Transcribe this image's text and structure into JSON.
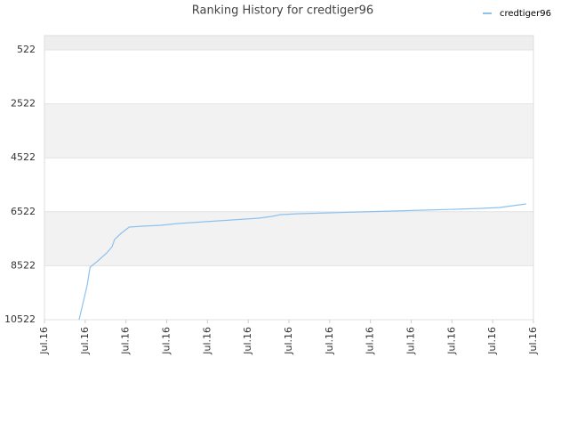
{
  "chart_data": {
    "type": "line",
    "title": "Ranking History for credtiger96",
    "series": [
      {
        "name": "credtiger96",
        "color": "#8ec2ee",
        "x": [
          0.85,
          1.05,
          1.12,
          1.31,
          1.53,
          1.66,
          1.72,
          1.88,
          2.08,
          2.41,
          2.85,
          3.28,
          3.94,
          4.6,
          5.26,
          5.58,
          5.8,
          6.24,
          7.01,
          7.77,
          8.54,
          9.31,
          10.07,
          10.73,
          11.17,
          11.5,
          11.82
        ],
        "values": [
          10522,
          9235,
          8574,
          8344,
          8047,
          7816,
          7552,
          7321,
          7090,
          7057,
          7024,
          6958,
          6892,
          6826,
          6759,
          6693,
          6627,
          6594,
          6561,
          6528,
          6495,
          6462,
          6429,
          6396,
          6363,
          6297,
          6231
        ]
      }
    ],
    "xlim": [
      0,
      12
    ],
    "xticks": [
      {
        "value": 0,
        "label": "Jul.16"
      },
      {
        "value": 1,
        "label": "Jul.16"
      },
      {
        "value": 2,
        "label": "Jul.16"
      },
      {
        "value": 3,
        "label": "Jul.16"
      },
      {
        "value": 4,
        "label": "Jul.16"
      },
      {
        "value": 5,
        "label": "Jul.16"
      },
      {
        "value": 6,
        "label": "Jul.16"
      },
      {
        "value": 7,
        "label": "Jul.16"
      },
      {
        "value": 8,
        "label": "Jul.16"
      },
      {
        "value": 9,
        "label": "Jul.16"
      },
      {
        "value": 10,
        "label": "Jul.16"
      },
      {
        "value": 11,
        "label": "Jul.16"
      },
      {
        "value": 12,
        "label": "Jul.16"
      }
    ],
    "ylim": [
      10522,
      -6
    ],
    "yticks": [
      522,
      2522,
      4522,
      6522,
      8522,
      10522
    ],
    "grid": true,
    "legend": "top-right"
  }
}
